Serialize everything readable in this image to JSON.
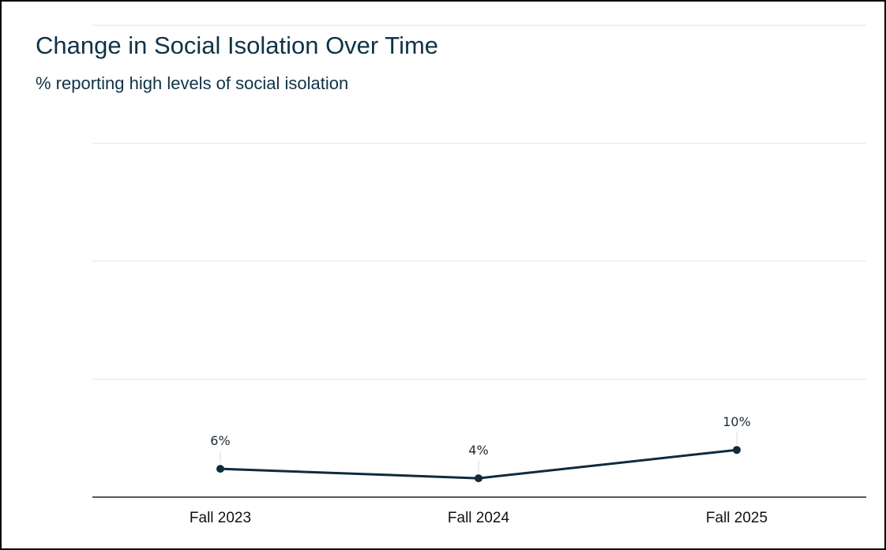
{
  "colors": {
    "title": "#0f3347",
    "line": "#0f2b3d",
    "grid": "#e6e6e6",
    "axis": "#222222"
  },
  "chart_data": {
    "type": "line",
    "title": "Change in Social Isolation Over Time",
    "subtitle": "% reporting high levels of social isolation",
    "categories": [
      "Fall 2023",
      "Fall 2024",
      "Fall 2025"
    ],
    "series": [
      {
        "values": [
          6,
          4,
          10
        ],
        "labels": [
          "6%",
          "4%",
          "10%"
        ]
      }
    ],
    "ylim": [
      0,
      100
    ],
    "gridlines": [
      25,
      50,
      75,
      100
    ],
    "grid": true,
    "legend": "none"
  }
}
